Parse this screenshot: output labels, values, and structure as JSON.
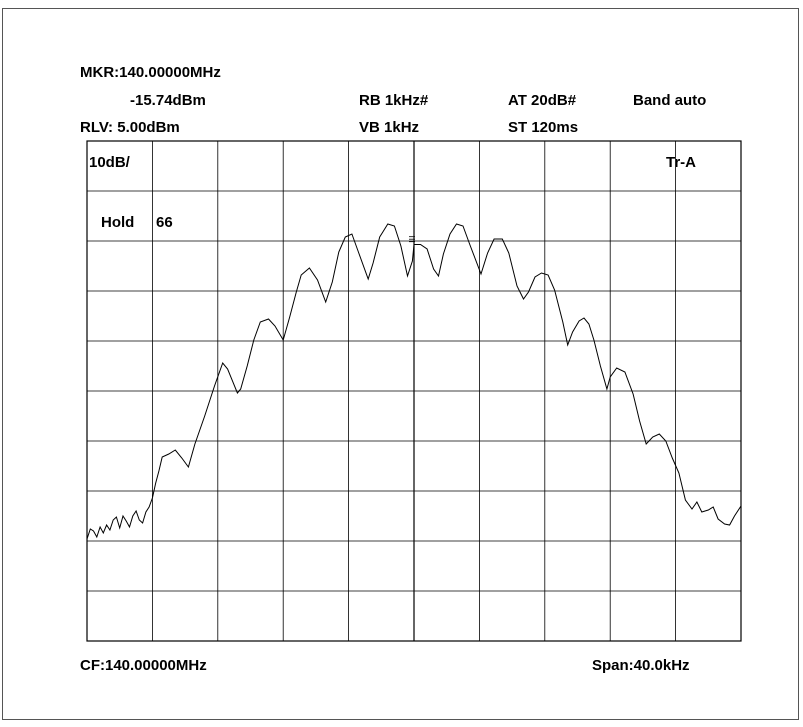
{
  "header": {
    "marker_freq": "MKR:140.00000MHz",
    "marker_level": "-15.74dBm",
    "ref_level": "RLV: 5.00dBm",
    "rbw": "RB 1kHz#",
    "vbw": "VB 1kHz",
    "attenuation": "AT 20dB#",
    "sweep_time": "ST 120ms",
    "band": "Band auto"
  },
  "grid_labels": {
    "scale": "10dB/",
    "trace": "Tr-A",
    "hold_label": "Hold",
    "hold_count": "66"
  },
  "footer": {
    "center_freq": "CF:140.00000MHz",
    "span": "Span:40.0kHz"
  },
  "chart_data": {
    "type": "line",
    "x_unit": "kHz offset from center 140.00000 MHz",
    "y_unit": "dBm",
    "xlim": [
      -20,
      20
    ],
    "ylim": [
      -95,
      5
    ],
    "grid": true,
    "marker": {
      "x": 0,
      "y": -15.74
    },
    "series": [
      {
        "values": [
          [
            -20.0,
            -74.6
          ],
          [
            -19.8,
            -72.6
          ],
          [
            -19.6,
            -73.0
          ],
          [
            -19.4,
            -74.2
          ],
          [
            -19.2,
            -72.2
          ],
          [
            -19.0,
            -73.4
          ],
          [
            -18.8,
            -71.8
          ],
          [
            -18.6,
            -72.8
          ],
          [
            -18.4,
            -70.8
          ],
          [
            -18.2,
            -70.2
          ],
          [
            -18.0,
            -72.4
          ],
          [
            -17.8,
            -70.0
          ],
          [
            -17.6,
            -71.0
          ],
          [
            -17.4,
            -72.2
          ],
          [
            -17.2,
            -70.0
          ],
          [
            -17.0,
            -69.0
          ],
          [
            -16.8,
            -70.8
          ],
          [
            -16.6,
            -71.4
          ],
          [
            -16.4,
            -69.2
          ],
          [
            -16.2,
            -68.2
          ],
          [
            -16.0,
            -66.4
          ],
          [
            -15.8,
            -63.4
          ],
          [
            -15.6,
            -61.0
          ],
          [
            -15.4,
            -58.2
          ],
          [
            -15.0,
            -57.6
          ],
          [
            -14.6,
            -56.8
          ],
          [
            -14.2,
            -58.4
          ],
          [
            -13.8,
            -60.2
          ],
          [
            -13.4,
            -55.6
          ],
          [
            -12.8,
            -50.0
          ],
          [
            -12.2,
            -44.0
          ],
          [
            -11.7,
            -39.4
          ],
          [
            -11.4,
            -40.6
          ],
          [
            -10.8,
            -45.4
          ],
          [
            -10.6,
            -44.6
          ],
          [
            -10.2,
            -40.0
          ],
          [
            -9.8,
            -34.8
          ],
          [
            -9.4,
            -31.2
          ],
          [
            -8.9,
            -30.6
          ],
          [
            -8.5,
            -32.0
          ],
          [
            -8.0,
            -34.8
          ],
          [
            -7.6,
            -30.2
          ],
          [
            -7.2,
            -25.2
          ],
          [
            -6.9,
            -21.8
          ],
          [
            -6.4,
            -20.4
          ],
          [
            -5.9,
            -22.8
          ],
          [
            -5.4,
            -27.2
          ],
          [
            -5.0,
            -23.2
          ],
          [
            -4.6,
            -17.2
          ],
          [
            -4.2,
            -14.2
          ],
          [
            -3.8,
            -13.6
          ],
          [
            -3.4,
            -17.2
          ],
          [
            -2.8,
            -22.6
          ],
          [
            -2.5,
            -19.4
          ],
          [
            -2.1,
            -14.2
          ],
          [
            -1.6,
            -11.6
          ],
          [
            -1.2,
            -12.0
          ],
          [
            -0.8,
            -16.0
          ],
          [
            -0.4,
            -22.0
          ],
          [
            -0.1,
            -19.0
          ],
          [
            0.0,
            -15.7
          ],
          [
            0.4,
            -15.7
          ],
          [
            0.8,
            -16.6
          ],
          [
            1.2,
            -20.6
          ],
          [
            1.5,
            -22.0
          ],
          [
            1.8,
            -17.6
          ],
          [
            2.2,
            -13.6
          ],
          [
            2.6,
            -11.6
          ],
          [
            3.0,
            -12.0
          ],
          [
            3.4,
            -15.6
          ],
          [
            4.1,
            -21.6
          ],
          [
            4.5,
            -17.4
          ],
          [
            4.9,
            -14.6
          ],
          [
            5.4,
            -14.6
          ],
          [
            5.8,
            -17.4
          ],
          [
            6.3,
            -24.0
          ],
          [
            6.7,
            -26.6
          ],
          [
            7.0,
            -25.2
          ],
          [
            7.4,
            -22.2
          ],
          [
            7.8,
            -21.4
          ],
          [
            8.2,
            -21.8
          ],
          [
            8.6,
            -24.8
          ],
          [
            9.1,
            -31.2
          ],
          [
            9.4,
            -35.8
          ],
          [
            9.7,
            -33.2
          ],
          [
            10.1,
            -31.0
          ],
          [
            10.4,
            -30.4
          ],
          [
            10.7,
            -31.6
          ],
          [
            11.0,
            -34.8
          ],
          [
            11.4,
            -40.0
          ],
          [
            11.8,
            -44.6
          ],
          [
            12.0,
            -42.2
          ],
          [
            12.4,
            -40.4
          ],
          [
            12.9,
            -41.2
          ],
          [
            13.4,
            -45.6
          ],
          [
            13.8,
            -51.0
          ],
          [
            14.2,
            -55.6
          ],
          [
            14.6,
            -54.2
          ],
          [
            15.0,
            -53.6
          ],
          [
            15.4,
            -55.0
          ],
          [
            15.8,
            -58.4
          ],
          [
            16.2,
            -61.4
          ],
          [
            16.6,
            -66.8
          ],
          [
            17.0,
            -68.6
          ],
          [
            17.3,
            -67.2
          ],
          [
            17.6,
            -69.2
          ],
          [
            18.0,
            -68.8
          ],
          [
            18.3,
            -68.2
          ],
          [
            18.6,
            -70.6
          ],
          [
            19.0,
            -71.6
          ],
          [
            19.3,
            -71.8
          ],
          [
            19.6,
            -70.0
          ],
          [
            20.0,
            -68.0
          ]
        ]
      }
    ]
  }
}
